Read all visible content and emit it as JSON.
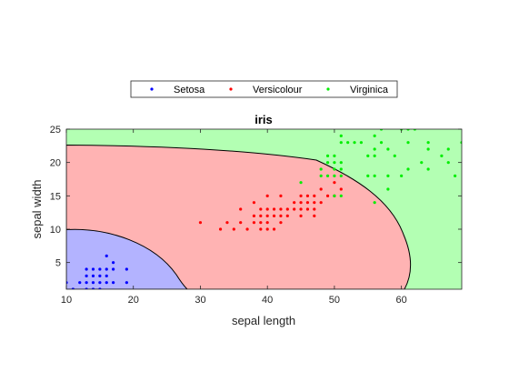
{
  "chart_data": {
    "type": "scatter",
    "title": "iris",
    "xlabel": "sepal length",
    "ylabel": "sepal width",
    "xlim": [
      10,
      69
    ],
    "ylim": [
      1,
      25
    ],
    "xticks": [
      10,
      20,
      30,
      40,
      50,
      60
    ],
    "yticks": [
      5,
      10,
      15,
      20,
      25
    ],
    "legend_position": "top-center, outside plot area",
    "region_colors": {
      "Setosa": "#b3b3ff",
      "Versicolour": "#ffb3b3",
      "Virginica": "#b3ffb3"
    },
    "series": [
      {
        "name": "Setosa",
        "color": "#0000ff",
        "points": [
          [
            10,
            2
          ],
          [
            11,
            1
          ],
          [
            12,
            2
          ],
          [
            13,
            1
          ],
          [
            13,
            2
          ],
          [
            13,
            3
          ],
          [
            13,
            4
          ],
          [
            14,
            1
          ],
          [
            14,
            2
          ],
          [
            14,
            3
          ],
          [
            14,
            4
          ],
          [
            15,
            1
          ],
          [
            15,
            2
          ],
          [
            15,
            3
          ],
          [
            15,
            4
          ],
          [
            16,
            2
          ],
          [
            16,
            3
          ],
          [
            16,
            4
          ],
          [
            16,
            6
          ],
          [
            17,
            2
          ],
          [
            17,
            4
          ],
          [
            17,
            5
          ],
          [
            19,
            2
          ],
          [
            19,
            4
          ]
        ]
      },
      {
        "name": "Versicolour",
        "color": "#ff0000",
        "points": [
          [
            30,
            11
          ],
          [
            33,
            10
          ],
          [
            34,
            11
          ],
          [
            35,
            10
          ],
          [
            36,
            11
          ],
          [
            36,
            13
          ],
          [
            37,
            10
          ],
          [
            38,
            11
          ],
          [
            38,
            12
          ],
          [
            38,
            14
          ],
          [
            39,
            10
          ],
          [
            39,
            11
          ],
          [
            39,
            12
          ],
          [
            39,
            13
          ],
          [
            40,
            10
          ],
          [
            40,
            11
          ],
          [
            40,
            12
          ],
          [
            40,
            13
          ],
          [
            40,
            15
          ],
          [
            41,
            10
          ],
          [
            41,
            12
          ],
          [
            41,
            13
          ],
          [
            42,
            11
          ],
          [
            42,
            12
          ],
          [
            42,
            13
          ],
          [
            42,
            15
          ],
          [
            43,
            12
          ],
          [
            43,
            13
          ],
          [
            44,
            13
          ],
          [
            44,
            14
          ],
          [
            45,
            12
          ],
          [
            45,
            13
          ],
          [
            45,
            14
          ],
          [
            45,
            15
          ],
          [
            46,
            13
          ],
          [
            46,
            14
          ],
          [
            46,
            15
          ],
          [
            47,
            12
          ],
          [
            47,
            13
          ],
          [
            47,
            14
          ],
          [
            47,
            15
          ],
          [
            48,
            14
          ],
          [
            48,
            16
          ],
          [
            49,
            15
          ],
          [
            50,
            15
          ],
          [
            50,
            17
          ],
          [
            51,
            16
          ]
        ]
      },
      {
        "name": "Virginica",
        "color": "#00ee00",
        "points": [
          [
            45,
            17
          ],
          [
            48,
            18
          ],
          [
            48,
            19
          ],
          [
            49,
            18
          ],
          [
            49,
            20
          ],
          [
            49,
            21
          ],
          [
            50,
            15
          ],
          [
            50,
            18
          ],
          [
            50,
            19
          ],
          [
            50,
            20
          ],
          [
            50,
            21
          ],
          [
            51,
            15
          ],
          [
            51,
            18
          ],
          [
            51,
            19
          ],
          [
            51,
            20
          ],
          [
            51,
            23
          ],
          [
            51,
            24
          ],
          [
            52,
            23
          ],
          [
            53,
            23
          ],
          [
            54,
            23
          ],
          [
            55,
            18
          ],
          [
            55,
            21
          ],
          [
            56,
            14
          ],
          [
            56,
            18
          ],
          [
            56,
            21
          ],
          [
            56,
            22
          ],
          [
            56,
            24
          ],
          [
            57,
            23
          ],
          [
            57,
            25
          ],
          [
            58,
            16
          ],
          [
            58,
            18
          ],
          [
            58,
            22
          ],
          [
            59,
            21
          ],
          [
            60,
            18
          ],
          [
            60,
            25
          ],
          [
            61,
            19
          ],
          [
            61,
            23
          ],
          [
            61,
            25
          ],
          [
            62,
            25
          ],
          [
            63,
            20
          ],
          [
            64,
            19
          ],
          [
            64,
            22
          ],
          [
            64,
            23
          ],
          [
            66,
            21
          ],
          [
            67,
            20
          ],
          [
            67,
            22
          ],
          [
            68,
            18
          ],
          [
            69,
            23
          ]
        ]
      }
    ]
  }
}
